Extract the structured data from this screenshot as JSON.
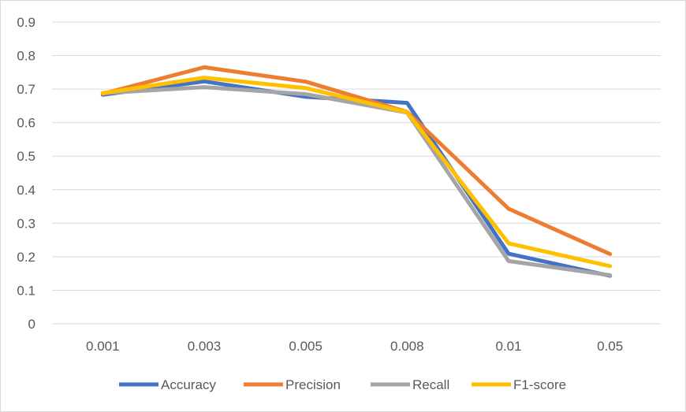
{
  "chart_data": {
    "type": "line",
    "title": "",
    "xlabel": "",
    "ylabel": "",
    "categories": [
      "0.001",
      "0.003",
      "0.005",
      "0.008",
      "0.01",
      "0.05"
    ],
    "ylim": [
      0,
      0.9
    ],
    "yticks": [
      "0",
      "0.1",
      "0.2",
      "0.3",
      "0.4",
      "0.5",
      "0.6",
      "0.7",
      "0.8",
      "0.9"
    ],
    "grid": true,
    "legend_position": "bottom",
    "series": [
      {
        "name": "Accuracy",
        "color": "#4472C4",
        "values": [
          0.683,
          0.723,
          0.677,
          0.659,
          0.209,
          0.143
        ]
      },
      {
        "name": "Precision",
        "color": "#ED7D31",
        "values": [
          0.686,
          0.765,
          0.722,
          0.632,
          0.343,
          0.208
        ]
      },
      {
        "name": "Recall",
        "color": "#A5A5A5",
        "values": [
          0.688,
          0.706,
          0.685,
          0.63,
          0.187,
          0.145
        ]
      },
      {
        "name": "F1-score",
        "color": "#FFC000",
        "values": [
          0.688,
          0.734,
          0.703,
          0.631,
          0.24,
          0.172
        ]
      }
    ]
  }
}
